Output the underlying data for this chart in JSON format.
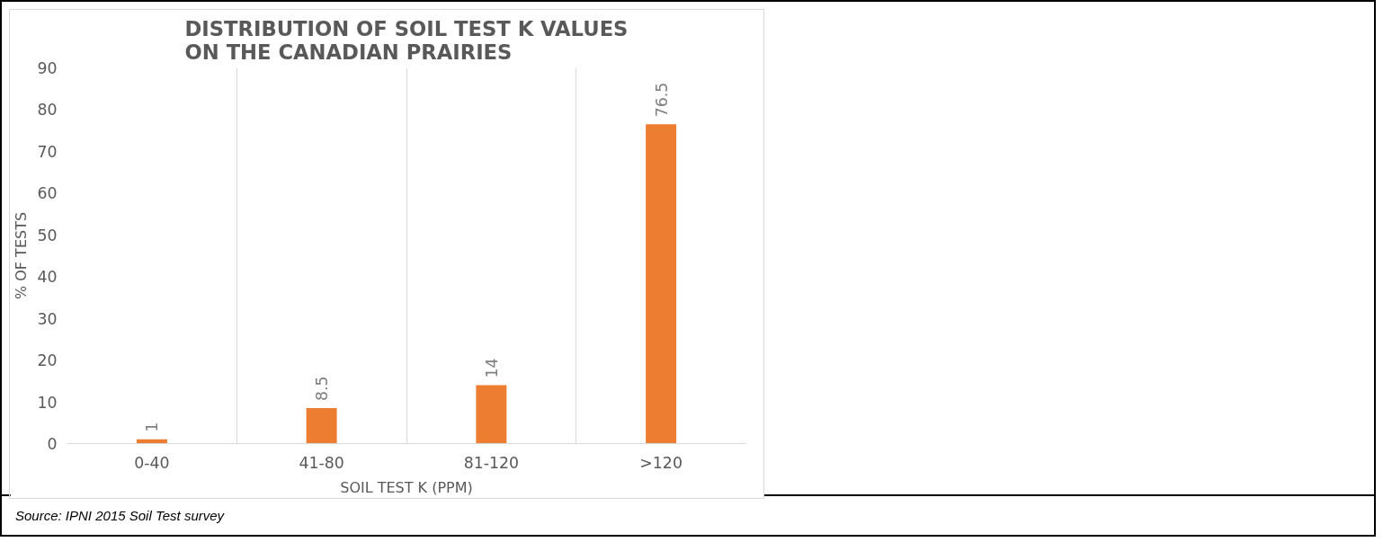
{
  "chart_data": {
    "type": "bar",
    "title": "DISTRIBUTION OF SOIL TEST K VALUES ON THE CANADIAN PRAIRIES",
    "xlabel": "SOIL TEST K (PPM)",
    "ylabel": "% OF TESTS",
    "categories": [
      "0-40",
      "41-80",
      "81-120",
      ">120"
    ],
    "values": [
      1,
      8.5,
      14,
      76.5
    ],
    "color": "#ed7d31",
    "ylim": [
      0,
      90
    ],
    "yticks": [
      0,
      10,
      20,
      30,
      40,
      50,
      60,
      70,
      80,
      90
    ],
    "grid": "x",
    "data_labels": true,
    "annotations": [
      "Source: IPNI 2015 Soil Test survey"
    ]
  }
}
